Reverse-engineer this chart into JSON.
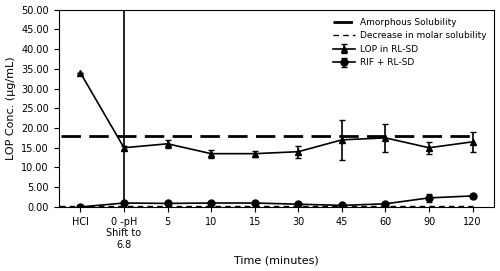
{
  "x_labels": [
    "HCl",
    "0 -pH\nShift to\n6.8",
    "5",
    "10",
    "15",
    "30",
    "45",
    "60",
    "90",
    "120"
  ],
  "x_positions": [
    0,
    1,
    2,
    3,
    4,
    5,
    6,
    7,
    8,
    9
  ],
  "lop_values": [
    34.0,
    15.0,
    16.0,
    13.5,
    13.5,
    14.0,
    17.0,
    17.5,
    15.0,
    16.5
  ],
  "lop_errors": [
    0.0,
    0.5,
    1.0,
    1.0,
    0.8,
    1.5,
    5.0,
    3.5,
    1.5,
    2.5
  ],
  "rif_values": [
    0.0,
    1.0,
    0.9,
    1.0,
    1.0,
    0.7,
    0.4,
    0.8,
    2.3,
    2.8
  ],
  "rif_errors": [
    0.0,
    0.0,
    0.2,
    0.2,
    0.2,
    0.2,
    0.1,
    0.2,
    1.0,
    0.5
  ],
  "amorphous_solubility": 18.0,
  "decrease_molar_solubility": 0.3,
  "ylim": [
    0,
    50
  ],
  "yticks": [
    0.0,
    5.0,
    10.0,
    15.0,
    20.0,
    25.0,
    30.0,
    35.0,
    40.0,
    45.0,
    50.0
  ],
  "ylabel": "LOP Conc. (µg/mL)",
  "xlabel": "Time (minutes)",
  "line_color": "#000000",
  "legend_labels": [
    "LOP in RL-SD",
    "RIF + RL-SD",
    "Amorphous Solubility",
    "Decrease in molar solubility"
  ],
  "figsize": [
    5.0,
    2.71
  ],
  "dpi": 100
}
